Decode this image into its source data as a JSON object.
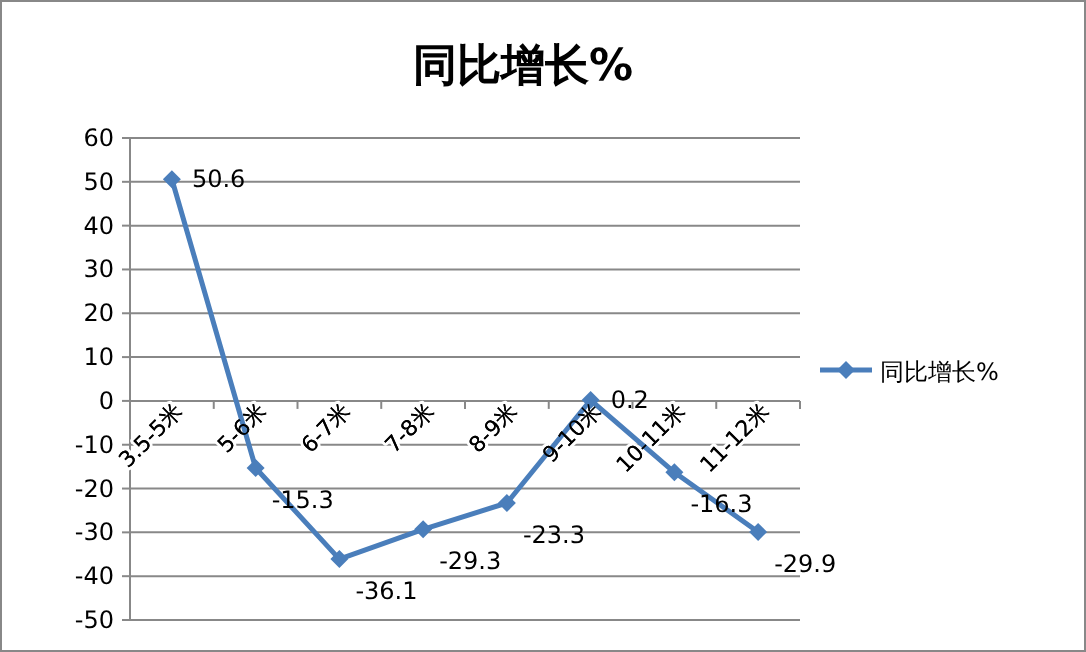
{
  "chart_data": {
    "type": "line",
    "title": "同比增长%",
    "categories": [
      "3.5-5米",
      "5-6米",
      "6-7米",
      "7-8米",
      "8-9米",
      "9-10米",
      "10-11米",
      "11-12米"
    ],
    "series": [
      {
        "name": "同比增长%",
        "color": "#4a7ebb",
        "values": [
          50.6,
          -15.3,
          -36.1,
          -29.3,
          -23.3,
          0.2,
          -16.3,
          -29.9
        ]
      }
    ],
    "ylim": [
      -50,
      60
    ],
    "yticks": [
      -50,
      -40,
      -30,
      -20,
      -10,
      0,
      10,
      20,
      30,
      40,
      50,
      60
    ],
    "grid": "y",
    "legend": "right",
    "marker": "diamond",
    "line_style": "solid",
    "data_labels": true
  }
}
